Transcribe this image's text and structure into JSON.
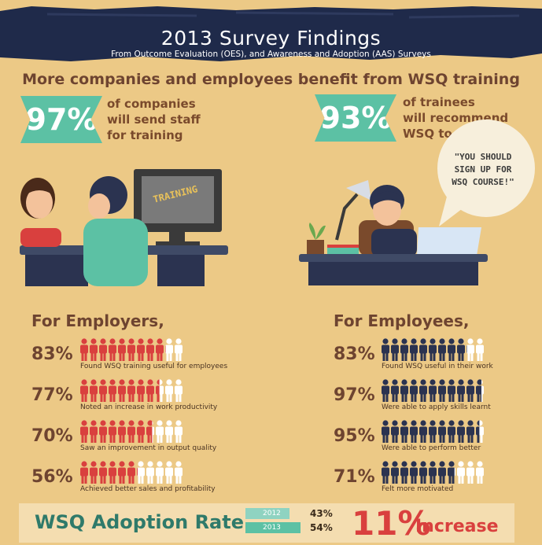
{
  "header": {
    "title": "2013 Survey Findings",
    "subtitle": "From Outcome Evaluation (OES), and Awareness and Adoption (AAS) Surveys",
    "headline": "More companies and employees benefit from WSQ training"
  },
  "stats": {
    "companies": {
      "value": "97%",
      "lines": [
        "of companies",
        "will send staff",
        "for training"
      ]
    },
    "trainees": {
      "value": "93%",
      "lines": [
        "of trainees",
        "will recommend",
        "WSQ to others"
      ]
    }
  },
  "illustrations": {
    "screen_text": "TRAINING",
    "bubble_lines": [
      "\"YOU SHOULD",
      "SIGN UP FOR",
      "WSQ COURSE!\""
    ]
  },
  "employers": {
    "heading": "For Employers,",
    "rows": [
      {
        "pct": "83%",
        "fraction": 0.83,
        "caption": "Found WSQ training useful for employees"
      },
      {
        "pct": "77%",
        "fraction": 0.77,
        "caption": "Noted an increase in work productivity"
      },
      {
        "pct": "70%",
        "fraction": 0.7,
        "caption": "Saw an improvement in output quality"
      },
      {
        "pct": "56%",
        "fraction": 0.56,
        "caption": "Achieved better sales and profitability"
      }
    ]
  },
  "employees": {
    "heading": "For Employees,",
    "rows": [
      {
        "pct": "83%",
        "fraction": 0.83,
        "caption": "Found WSQ useful in their work"
      },
      {
        "pct": "97%",
        "fraction": 0.97,
        "caption": "Were able to apply skills learnt"
      },
      {
        "pct": "95%",
        "fraction": 0.95,
        "caption": "Were able to perform better"
      },
      {
        "pct": "71%",
        "fraction": 0.71,
        "caption": "Felt more motivated"
      }
    ]
  },
  "adoption": {
    "title": "WSQ Adoption Rate",
    "bars": [
      {
        "year": "2012",
        "value": "43%",
        "fraction": 0.43
      },
      {
        "year": "2013",
        "value": "54%",
        "fraction": 0.54
      }
    ],
    "increase_value": "11%",
    "increase_label": "Increase"
  },
  "colors": {
    "background": "#ecc986",
    "banner": "#1f2a4a",
    "accent_teal": "#5cc1a4",
    "employer_figure": "#d9403e",
    "employee_figure": "#2b3350",
    "figure_empty": "#ffffff",
    "increase": "#d9403e"
  }
}
